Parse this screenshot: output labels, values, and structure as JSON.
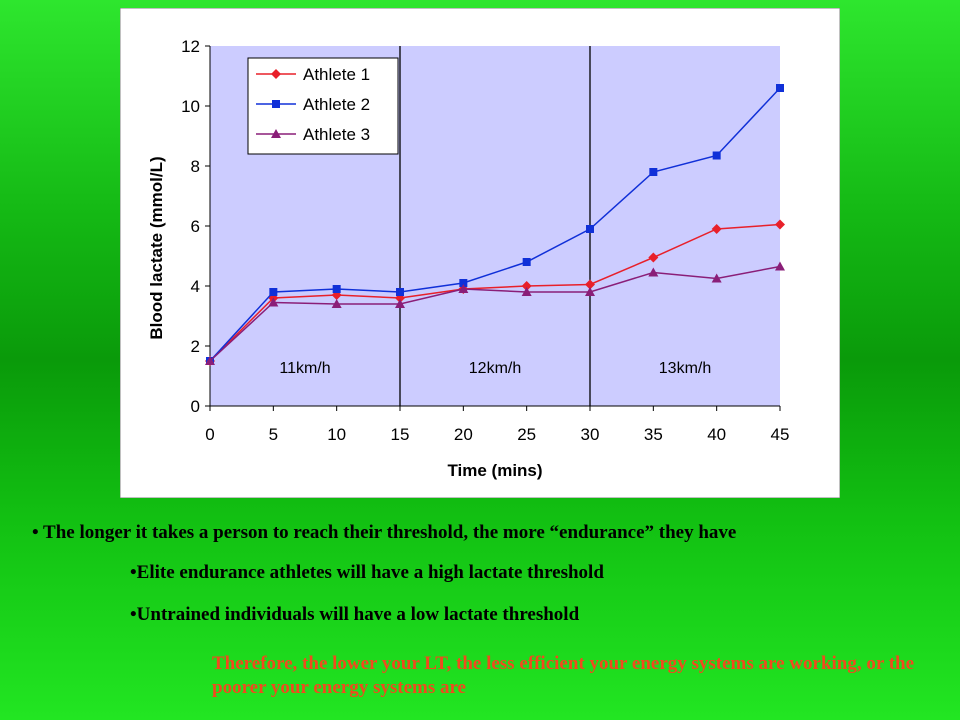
{
  "chart_data": {
    "type": "line",
    "xlabel": "Time (mins)",
    "ylabel": "Blood lactate (mmol/L)",
    "xlim": [
      0,
      45
    ],
    "ylim": [
      0,
      12
    ],
    "x_ticks": [
      "0",
      "5",
      "10",
      "15",
      "20",
      "25",
      "30",
      "35",
      "40",
      "45"
    ],
    "y_ticks": [
      "0",
      "2",
      "4",
      "6",
      "8",
      "10",
      "12"
    ],
    "x": [
      0,
      5,
      10,
      15,
      20,
      25,
      30,
      35,
      40,
      45
    ],
    "series": [
      {
        "name": "Athlete 1",
        "color": "#E8202A",
        "marker": "diamond",
        "values": [
          1.5,
          3.6,
          3.7,
          3.6,
          3.9,
          4.0,
          4.05,
          4.95,
          5.9,
          6.05
        ]
      },
      {
        "name": "Athlete 2",
        "color": "#1030D8",
        "marker": "square",
        "values": [
          1.5,
          3.8,
          3.9,
          3.8,
          4.1,
          4.8,
          5.9,
          7.8,
          8.35,
          10.6
        ]
      },
      {
        "name": "Athlete 3",
        "color": "#8A1E78",
        "marker": "triangle",
        "values": [
          1.5,
          3.45,
          3.4,
          3.4,
          3.9,
          3.8,
          3.8,
          4.45,
          4.25,
          4.65
        ]
      }
    ],
    "phase_dividers_x": [
      15,
      30
    ],
    "phase_labels": [
      {
        "text": "11km/h",
        "x": 7.5
      },
      {
        "text": "12km/h",
        "x": 22.5
      },
      {
        "text": "13km/h",
        "x": 37.5
      }
    ],
    "phase_label_y": 1.1,
    "legend_position": "top-left",
    "plot_background": "#CCCCFF",
    "grid": false
  },
  "text": {
    "bullet1": "• The longer it takes a person to reach their threshold, the more “endurance” they have",
    "bullet2": "•Elite endurance athletes will have a high lactate threshold",
    "bullet3": "•Untrained individuals will have a low lactate threshold",
    "conclusion": "Therefore, the lower your LT, the less efficient your energy systems are working, or the poorer your energy systems are"
  },
  "colors": {
    "background": "#14B814",
    "conclusion_text": "#F04A1E"
  }
}
